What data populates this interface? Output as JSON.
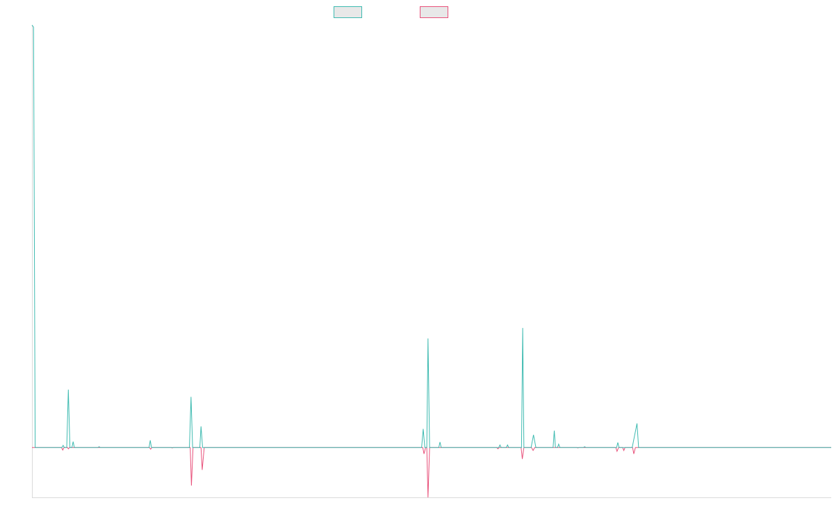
{
  "chart_data": {
    "type": "line",
    "title": "",
    "xlabel": "",
    "ylabel": "",
    "ylim": [
      -0.118,
      1.0
    ],
    "xlim": [
      0,
      200
    ],
    "grid": false,
    "legend": {
      "position": "top-center"
    },
    "colors": {
      "series_a": "#3dbab0",
      "series_b": "#e8507a",
      "legend_fill": "#e8e8e8",
      "axis": "#d9d9d9"
    },
    "series": [
      {
        "key": "a",
        "points": [
          [
            0,
            1.0
          ],
          [
            0.4,
            0.995
          ],
          [
            0.8,
            0.0
          ],
          [
            7.5,
            0.0
          ],
          [
            7.8,
            0.005
          ],
          [
            8.1,
            0.0
          ],
          [
            8.7,
            0.0
          ],
          [
            9.1,
            0.137
          ],
          [
            9.5,
            0.0
          ],
          [
            10.0,
            0.0
          ],
          [
            10.3,
            0.014
          ],
          [
            10.6,
            0.0
          ],
          [
            16.5,
            0.0
          ],
          [
            16.8,
            0.002
          ],
          [
            17.1,
            0.0
          ],
          [
            29.3,
            0.0
          ],
          [
            29.6,
            0.017
          ],
          [
            29.9,
            0.0
          ],
          [
            37.5,
            0.0
          ],
          [
            39.4,
            0.0
          ],
          [
            39.8,
            0.12
          ],
          [
            40.2,
            0.0
          ],
          [
            42.0,
            0.0
          ],
          [
            42.3,
            0.05
          ],
          [
            42.7,
            0.0
          ],
          [
            97.5,
            0.0
          ],
          [
            97.9,
            0.044
          ],
          [
            98.3,
            0.0
          ],
          [
            98.8,
            0.0
          ],
          [
            99.1,
            0.258
          ],
          [
            99.5,
            0.0
          ],
          [
            101.8,
            0.0
          ],
          [
            102.1,
            0.013
          ],
          [
            102.4,
            0.0
          ],
          [
            116.8,
            0.0
          ],
          [
            117.1,
            0.006
          ],
          [
            117.4,
            0.0
          ],
          [
            118.7,
            0.0
          ],
          [
            119.0,
            0.006
          ],
          [
            119.3,
            0.0
          ],
          [
            122.5,
            0.0
          ],
          [
            122.8,
            0.283
          ],
          [
            123.1,
            0.0
          ],
          [
            124.9,
            0.0
          ],
          [
            125.5,
            0.03
          ],
          [
            126.1,
            0.0
          ],
          [
            130.4,
            0.0
          ],
          [
            130.7,
            0.04
          ],
          [
            131.0,
            0.0
          ],
          [
            131.5,
            0.0
          ],
          [
            131.8,
            0.008
          ],
          [
            132.1,
            0.0
          ],
          [
            138.0,
            0.0
          ],
          [
            138.3,
            0.002
          ],
          [
            138.6,
            0.0
          ],
          [
            146.3,
            0.0
          ],
          [
            146.6,
            0.012
          ],
          [
            146.9,
            0.0
          ],
          [
            150.2,
            0.0
          ],
          [
            151.4,
            0.057
          ],
          [
            151.8,
            0.0
          ],
          [
            200,
            0.0
          ]
        ]
      },
      {
        "key": "b",
        "points": [
          [
            0,
            0.0
          ],
          [
            7.4,
            0.0
          ],
          [
            7.7,
            -0.006
          ],
          [
            8.0,
            0.0
          ],
          [
            8.9,
            0.0
          ],
          [
            9.1,
            -0.003
          ],
          [
            9.4,
            0.0
          ],
          [
            29.4,
            0.0
          ],
          [
            29.7,
            -0.004
          ],
          [
            30.0,
            0.0
          ],
          [
            34.8,
            0.0
          ],
          [
            35.1,
            -0.001
          ],
          [
            35.4,
            0.0
          ],
          [
            39.6,
            0.0
          ],
          [
            39.9,
            -0.09
          ],
          [
            40.3,
            0.0
          ],
          [
            42.3,
            0.0
          ],
          [
            42.6,
            -0.053
          ],
          [
            43.1,
            0.0
          ],
          [
            97.8,
            0.0
          ],
          [
            98.1,
            -0.015
          ],
          [
            98.5,
            0.0
          ],
          [
            98.8,
            0.0
          ],
          [
            99.1,
            -0.118
          ],
          [
            99.5,
            0.0
          ],
          [
            116.3,
            0.0
          ],
          [
            116.6,
            -0.003
          ],
          [
            116.9,
            0.0
          ],
          [
            122.4,
            0.0
          ],
          [
            122.7,
            -0.027
          ],
          [
            123.1,
            0.0
          ],
          [
            125.0,
            0.0
          ],
          [
            125.4,
            -0.007
          ],
          [
            125.8,
            0.0
          ],
          [
            136.3,
            0.0
          ],
          [
            136.6,
            -0.001
          ],
          [
            136.9,
            0.0
          ],
          [
            146.1,
            0.0
          ],
          [
            146.4,
            -0.009
          ],
          [
            146.8,
            0.0
          ],
          [
            147.8,
            0.0
          ],
          [
            148.1,
            -0.007
          ],
          [
            148.4,
            0.0
          ],
          [
            150.3,
            0.0
          ],
          [
            150.6,
            -0.015
          ],
          [
            151.0,
            0.0
          ],
          [
            200,
            0.0
          ]
        ]
      }
    ]
  }
}
